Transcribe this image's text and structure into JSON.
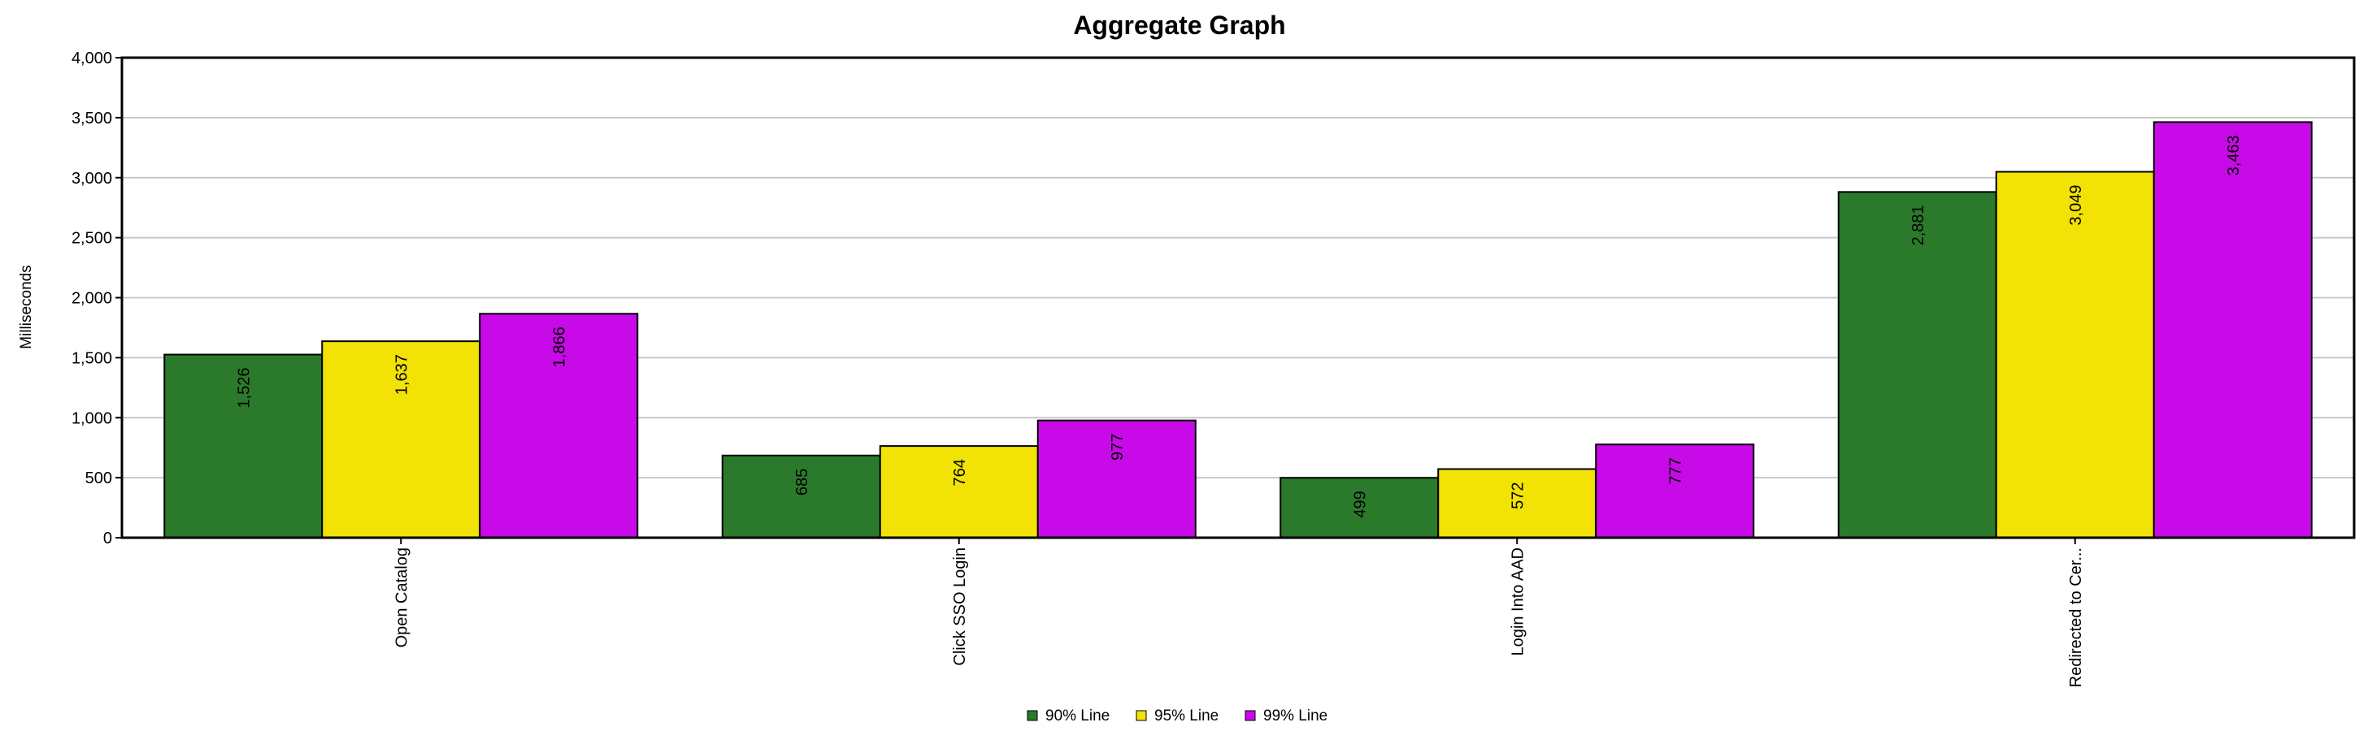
{
  "chart_data": {
    "type": "bar",
    "title": "Aggregate Graph",
    "ylabel": "Milliseconds",
    "xlabel": "",
    "ylim": [
      0,
      4000
    ],
    "yticks": [
      0,
      500,
      1000,
      1500,
      2000,
      2500,
      3000,
      3500,
      4000
    ],
    "ytick_labels": [
      "0",
      "500",
      "1,000",
      "1,500",
      "2,000",
      "2,500",
      "3,000",
      "3,500",
      "4,000"
    ],
    "grid": true,
    "legend_position": "bottom-center",
    "categories": [
      "Open Catalog",
      "Click SSO Login",
      "Login Into AAD",
      "Redirected to Cer..."
    ],
    "series": [
      {
        "name": "90% Line",
        "color": "#2b7a2b",
        "values": [
          1526,
          685,
          499,
          2881
        ],
        "labels": [
          "1,526",
          "685",
          "499",
          "2,881"
        ]
      },
      {
        "name": "95% Line",
        "color": "#f2e205",
        "values": [
          1637,
          764,
          572,
          3049
        ],
        "labels": [
          "1,637",
          "764",
          "572",
          "3,049"
        ]
      },
      {
        "name": "99% Line",
        "color": "#c80ae8",
        "values": [
          1866,
          977,
          777,
          3463
        ],
        "labels": [
          "1,866",
          "977",
          "777",
          "3,463"
        ]
      }
    ]
  }
}
